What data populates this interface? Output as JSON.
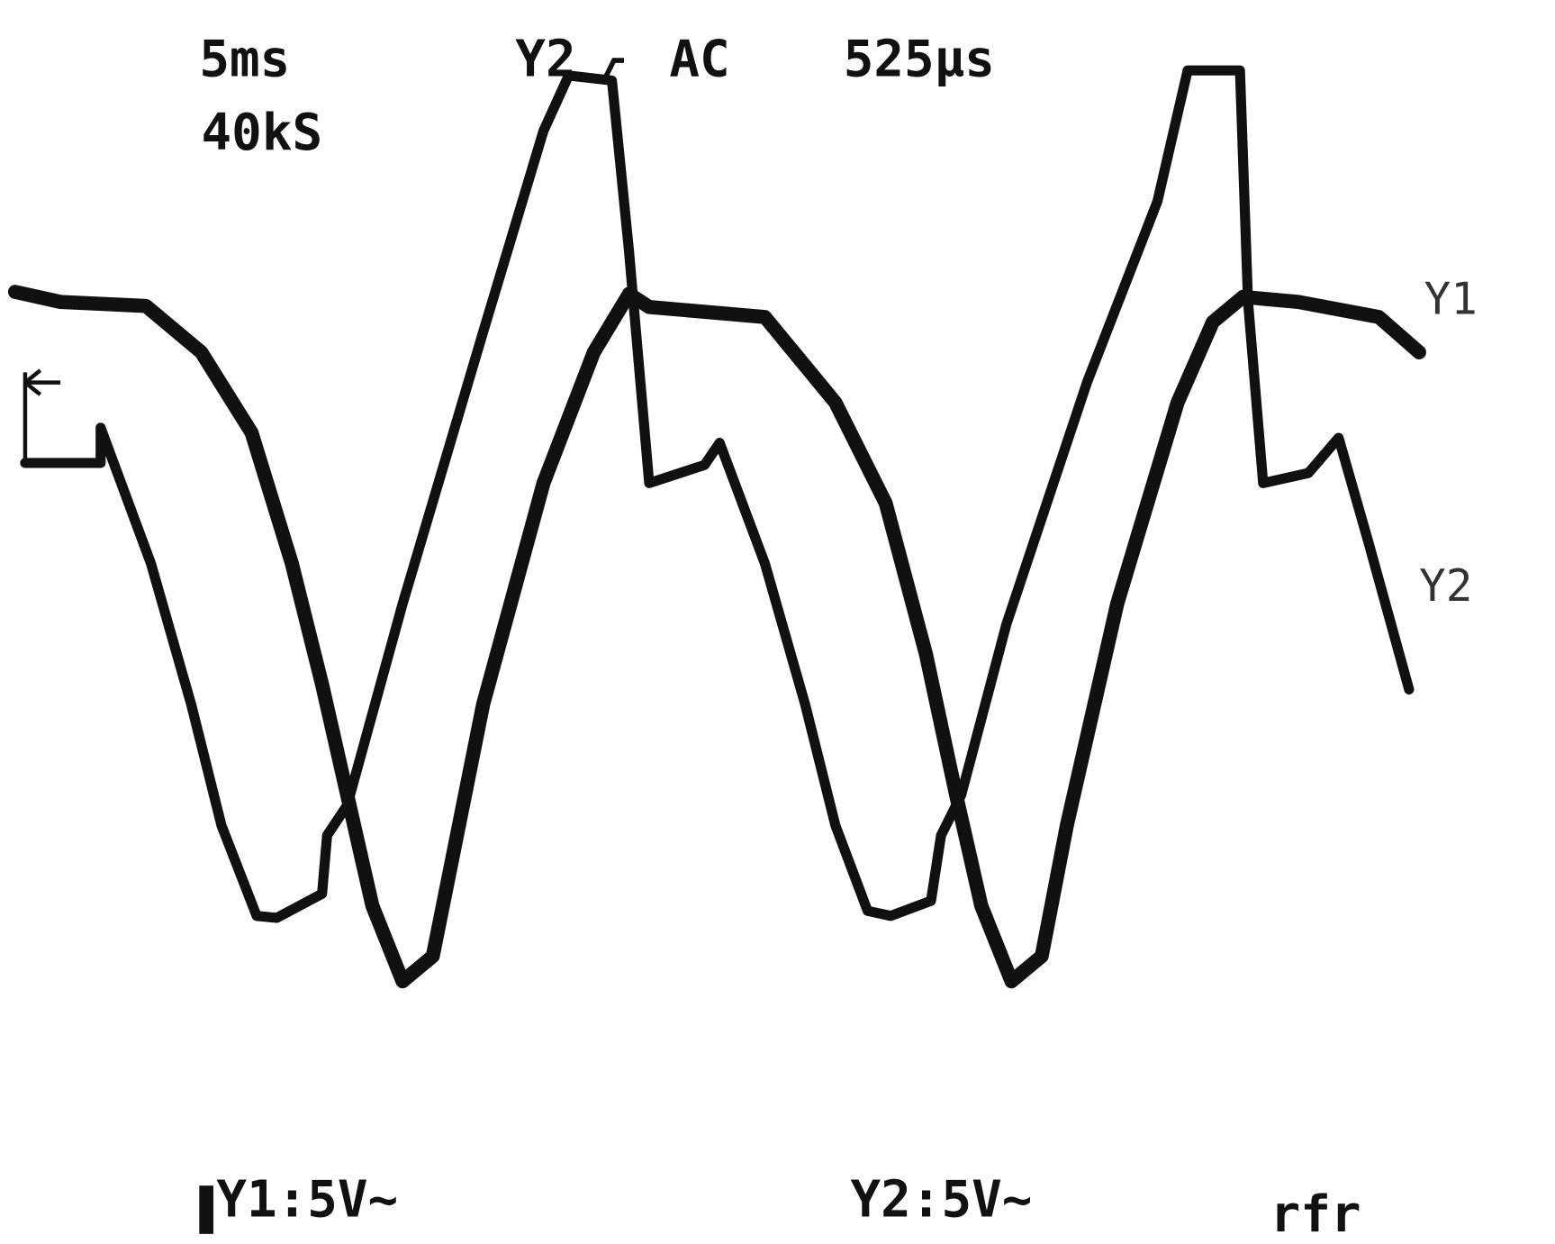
{
  "header": {
    "timebase": "5ms",
    "sample_rate": "40kS",
    "trigger_channel": "Y2",
    "coupling": "AC",
    "trigger_delay": "525µs"
  },
  "traces": [
    {
      "label": "Y1"
    },
    {
      "label": "Y2"
    }
  ],
  "footer": {
    "y1_scale": "Y1:5V~",
    "y2_scale": "Y2:5V~",
    "mode": "rfr"
  }
}
